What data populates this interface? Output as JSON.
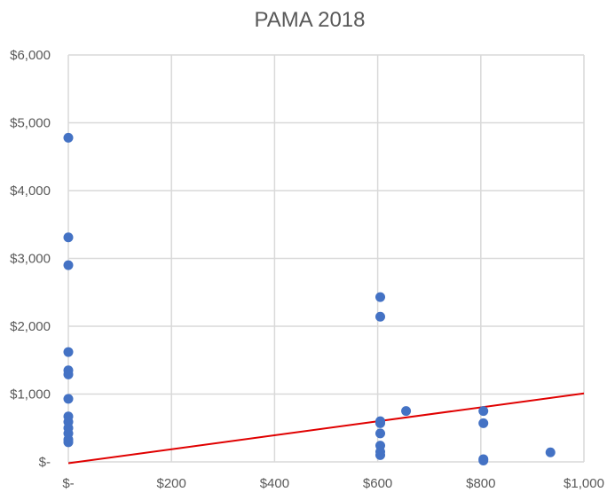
{
  "chart_data": {
    "type": "scatter",
    "title": "PAMA 2018",
    "xlabel": "",
    "ylabel": "",
    "xlim": [
      0,
      1000
    ],
    "ylim": [
      0,
      6000
    ],
    "grid": true,
    "legend": "none",
    "x_ticks": [
      {
        "value": 0,
        "label": "$-"
      },
      {
        "value": 200,
        "label": "$200"
      },
      {
        "value": 400,
        "label": "$400"
      },
      {
        "value": 600,
        "label": "$600"
      },
      {
        "value": 800,
        "label": "$800"
      },
      {
        "value": 1000,
        "label": "$1,000"
      }
    ],
    "y_ticks": [
      {
        "value": 0,
        "label": "$-"
      },
      {
        "value": 1000,
        "label": "$1,000"
      },
      {
        "value": 2000,
        "label": "$2,000"
      },
      {
        "value": 3000,
        "label": "$3,000"
      },
      {
        "value": 4000,
        "label": "$4,000"
      },
      {
        "value": 5000,
        "label": "$5,000"
      },
      {
        "value": 6000,
        "label": "$6,000"
      }
    ],
    "marker_color": "#4472C4",
    "trendline": {
      "from": [
        0,
        -20
      ],
      "to": [
        1000,
        1010
      ],
      "color": "#E00000"
    },
    "points": [
      {
        "x": 0,
        "y": 4780
      },
      {
        "x": 0,
        "y": 3310
      },
      {
        "x": 0,
        "y": 2900
      },
      {
        "x": 0,
        "y": 1620
      },
      {
        "x": 0,
        "y": 1350
      },
      {
        "x": 0,
        "y": 1290
      },
      {
        "x": 0,
        "y": 930
      },
      {
        "x": 0,
        "y": 670
      },
      {
        "x": 0,
        "y": 590
      },
      {
        "x": 0,
        "y": 500
      },
      {
        "x": 0,
        "y": 420
      },
      {
        "x": 0,
        "y": 330
      },
      {
        "x": 0,
        "y": 290
      },
      {
        "x": 605,
        "y": 2430
      },
      {
        "x": 605,
        "y": 2140
      },
      {
        "x": 605,
        "y": 600
      },
      {
        "x": 605,
        "y": 570
      },
      {
        "x": 605,
        "y": 420
      },
      {
        "x": 605,
        "y": 240
      },
      {
        "x": 605,
        "y": 150
      },
      {
        "x": 605,
        "y": 100
      },
      {
        "x": 655,
        "y": 750
      },
      {
        "x": 805,
        "y": 750
      },
      {
        "x": 805,
        "y": 570
      },
      {
        "x": 805,
        "y": 40
      },
      {
        "x": 805,
        "y": 20
      },
      {
        "x": 935,
        "y": 140
      }
    ]
  }
}
